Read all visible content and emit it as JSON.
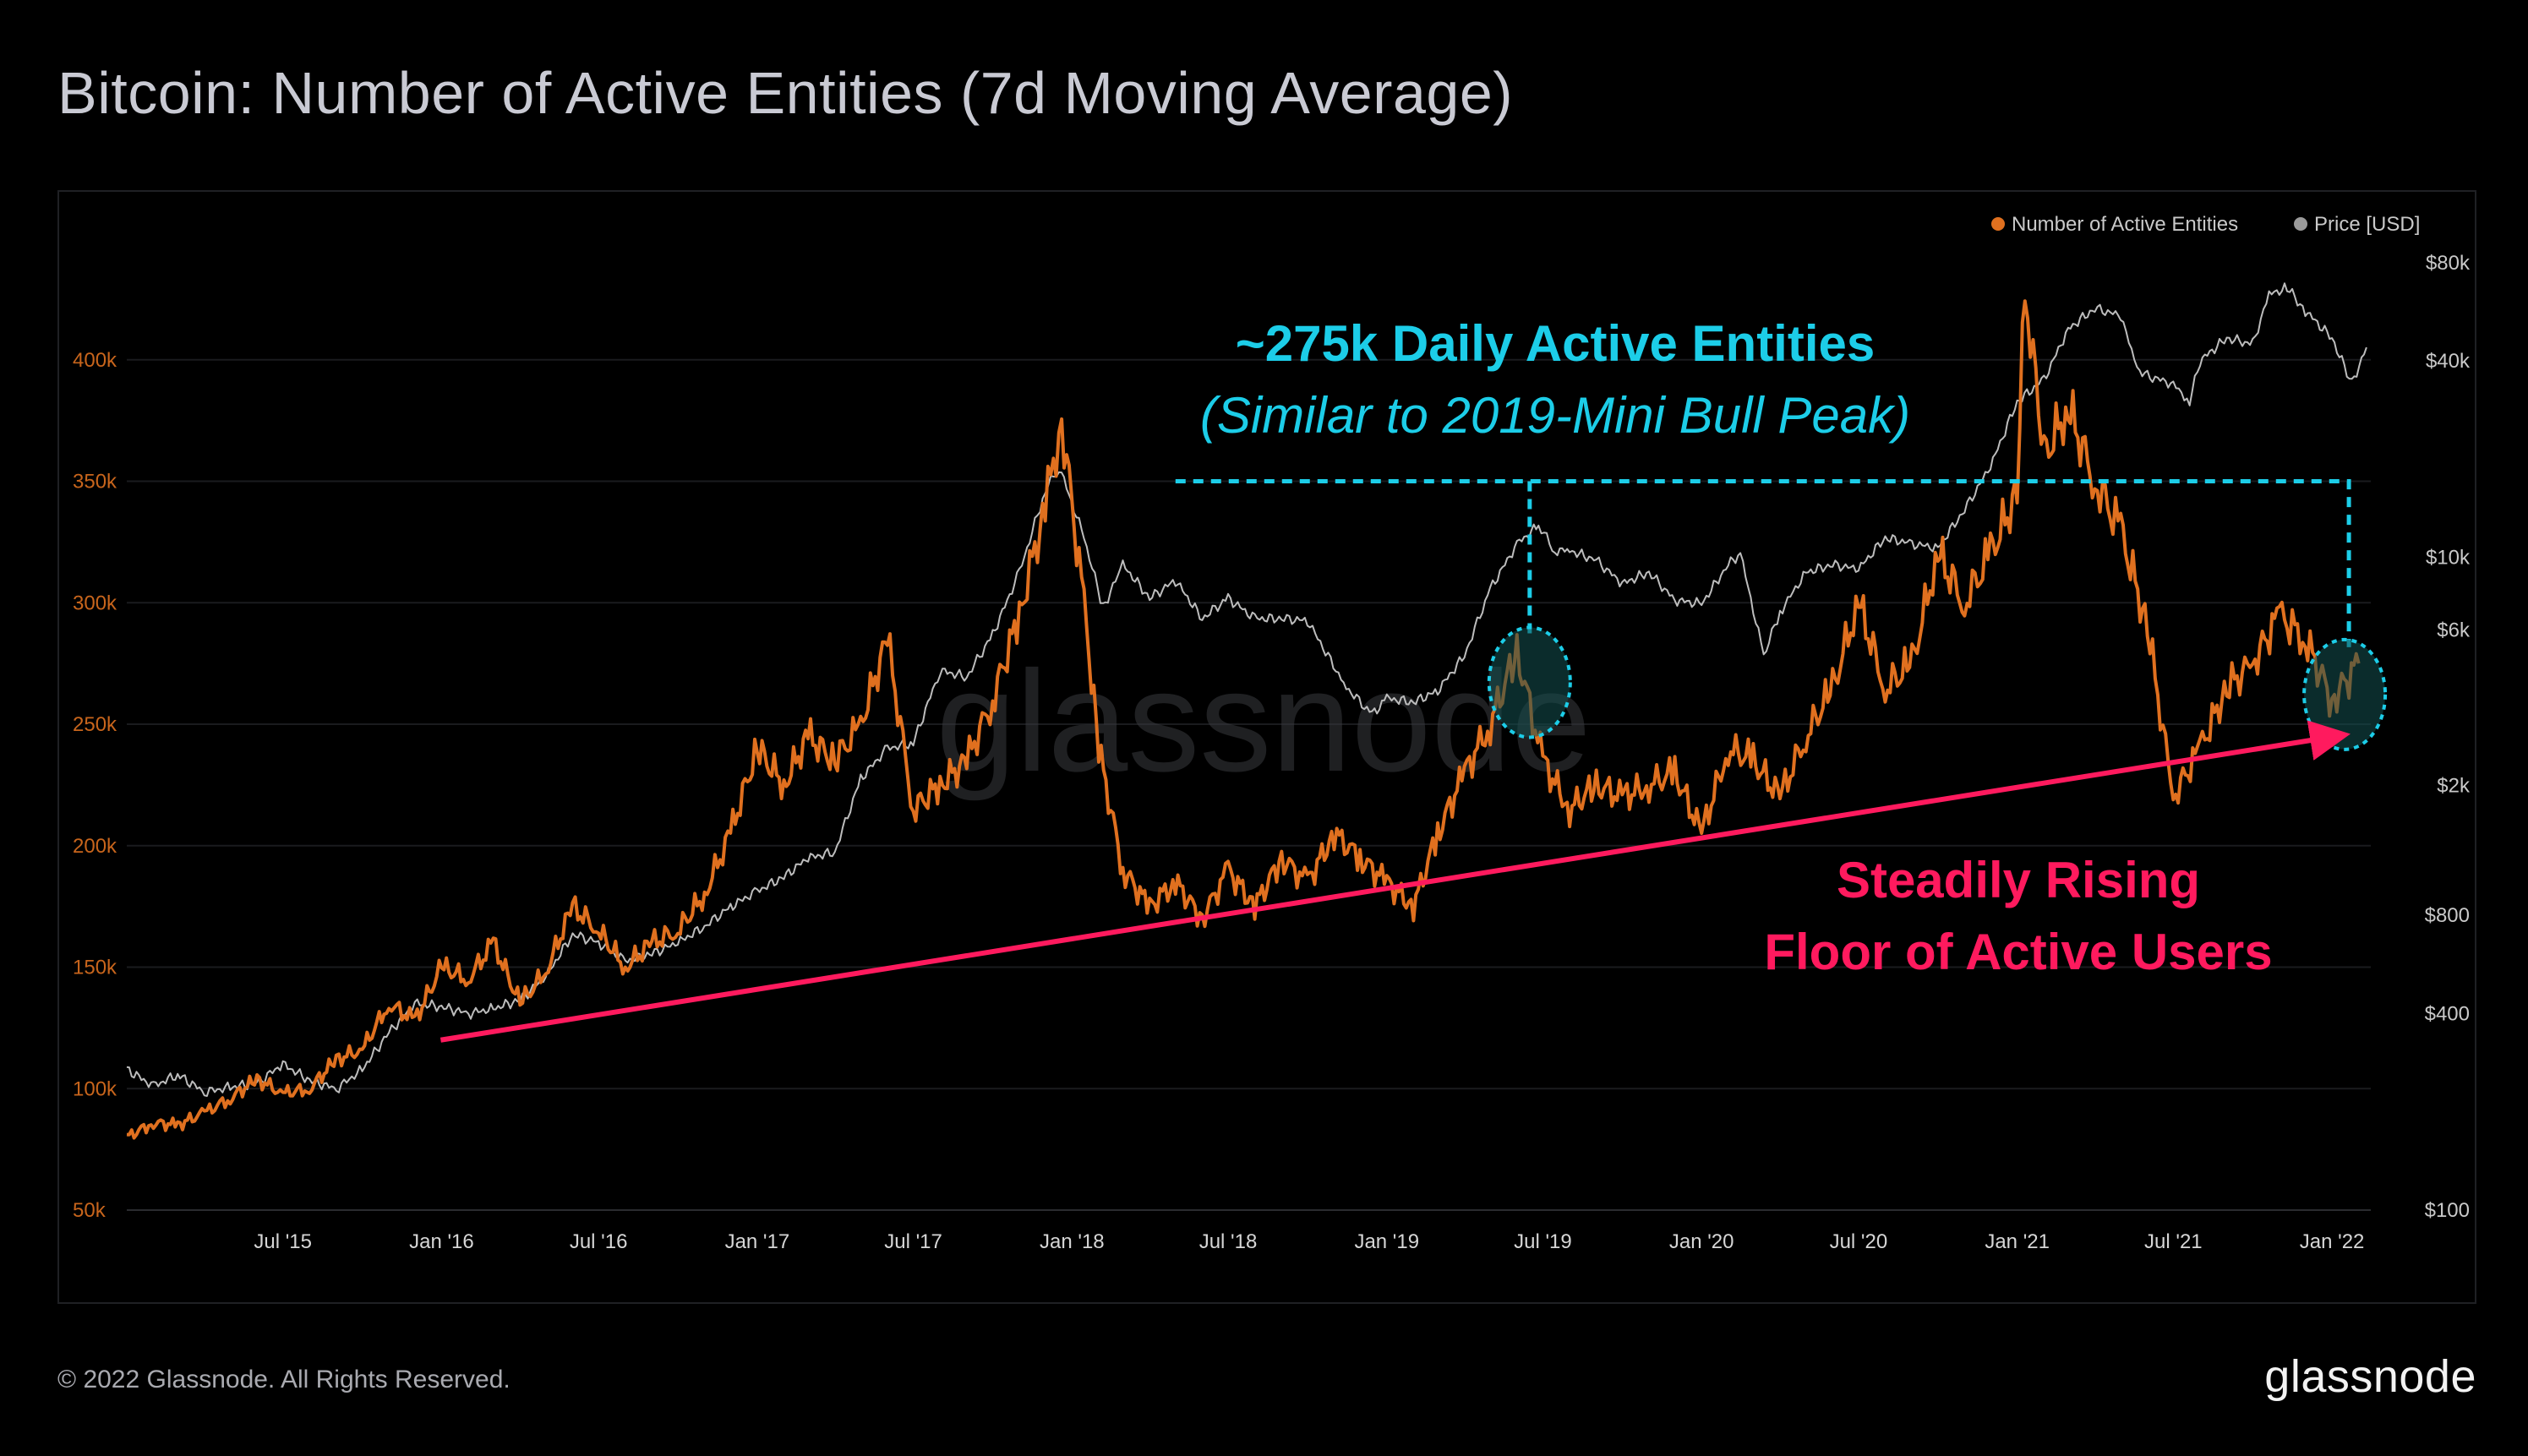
{
  "title": "Bitcoin: Number of Active Entities (7d Moving Average)",
  "footer": {
    "copyright": "© 2022 Glassnode. All Rights Reserved.",
    "brand": "glassnode"
  },
  "watermark": "glassnode",
  "chart_data": {
    "type": "line",
    "title": "Bitcoin: Number of Active Entities (7d Moving Average)",
    "x_ticks": [
      "Jul '15",
      "Jan '16",
      "Jul '16",
      "Jan '17",
      "Jul '17",
      "Jan '18",
      "Jul '18",
      "Jan '19",
      "Jul '19",
      "Jan '20",
      "Jul '20",
      "Jan '21",
      "Jul '21",
      "Jan '22"
    ],
    "x_range": [
      "2015-01-01",
      "2022-02-15"
    ],
    "y_left": {
      "range": [
        50000,
        450000
      ],
      "ticks": [
        50000,
        100000,
        150000,
        200000,
        250000,
        300000,
        350000,
        400000
      ],
      "tick_labels": [
        "50k",
        "100k",
        "150k",
        "200k",
        "250k",
        "300k",
        "350k",
        "400k"
      ]
    },
    "y_right": {
      "scale": "log",
      "range": [
        100,
        95000
      ],
      "ticks": [
        100,
        400,
        800,
        2000,
        6000,
        10000,
        40000,
        80000
      ],
      "tick_labels": [
        "$100",
        "$400",
        "$800",
        "$2k",
        "$6k",
        "$10k",
        "$40k",
        "$80k"
      ]
    },
    "legend": {
      "placement": "top-right"
    },
    "colors": {
      "entities": "#e0701f",
      "price": "#bdbdbd",
      "annotation_cyan": "#1ccde8",
      "annotation_pink": "#ff1a5e"
    },
    "series": [
      {
        "name": "Number of Active Entities",
        "axis": "left",
        "points": [
          [
            "2015-01-01",
            80000
          ],
          [
            "2015-02-01",
            86000
          ],
          [
            "2015-03-01",
            85000
          ],
          [
            "2015-04-01",
            90000
          ],
          [
            "2015-05-01",
            96000
          ],
          [
            "2015-06-01",
            104000
          ],
          [
            "2015-07-01",
            98000
          ],
          [
            "2015-08-01",
            100000
          ],
          [
            "2015-09-01",
            112000
          ],
          [
            "2015-10-01",
            116000
          ],
          [
            "2015-11-01",
            135000
          ],
          [
            "2015-12-01",
            128000
          ],
          [
            "2016-01-01",
            150000
          ],
          [
            "2016-02-01",
            145000
          ],
          [
            "2016-03-01",
            160000
          ],
          [
            "2016-04-01",
            135000
          ],
          [
            "2016-05-01",
            148000
          ],
          [
            "2016-06-01",
            175000
          ],
          [
            "2016-07-01",
            165000
          ],
          [
            "2016-08-01",
            150000
          ],
          [
            "2016-09-01",
            160000
          ],
          [
            "2016-10-01",
            165000
          ],
          [
            "2016-11-01",
            180000
          ],
          [
            "2016-12-01",
            205000
          ],
          [
            "2017-01-01",
            240000
          ],
          [
            "2017-02-01",
            225000
          ],
          [
            "2017-03-01",
            245000
          ],
          [
            "2017-04-01",
            235000
          ],
          [
            "2017-05-01",
            250000
          ],
          [
            "2017-06-01",
            285000
          ],
          [
            "2017-07-01",
            215000
          ],
          [
            "2017-08-01",
            225000
          ],
          [
            "2017-09-01",
            235000
          ],
          [
            "2017-10-01",
            260000
          ],
          [
            "2017-11-01",
            295000
          ],
          [
            "2017-12-01",
            340000
          ],
          [
            "2017-12-20",
            375000
          ],
          [
            "2018-01-15",
            300000
          ],
          [
            "2018-02-01",
            240000
          ],
          [
            "2018-03-01",
            190000
          ],
          [
            "2018-04-01",
            175000
          ],
          [
            "2018-05-01",
            185000
          ],
          [
            "2018-06-01",
            170000
          ],
          [
            "2018-07-01",
            190000
          ],
          [
            "2018-08-01",
            175000
          ],
          [
            "2018-09-01",
            195000
          ],
          [
            "2018-10-01",
            185000
          ],
          [
            "2018-11-01",
            205000
          ],
          [
            "2018-12-01",
            195000
          ],
          [
            "2019-01-01",
            185000
          ],
          [
            "2019-02-01",
            175000
          ],
          [
            "2019-03-01",
            205000
          ],
          [
            "2019-04-01",
            230000
          ],
          [
            "2019-05-01",
            250000
          ],
          [
            "2019-06-01",
            280000
          ],
          [
            "2019-07-01",
            235000
          ],
          [
            "2019-08-01",
            215000
          ],
          [
            "2019-09-01",
            225000
          ],
          [
            "2019-10-01",
            220000
          ],
          [
            "2019-11-01",
            225000
          ],
          [
            "2019-12-01",
            230000
          ],
          [
            "2020-01-01",
            205000
          ],
          [
            "2020-02-01",
            240000
          ],
          [
            "2020-03-01",
            235000
          ],
          [
            "2020-04-01",
            220000
          ],
          [
            "2020-05-01",
            245000
          ],
          [
            "2020-06-01",
            265000
          ],
          [
            "2020-07-01",
            300000
          ],
          [
            "2020-08-01",
            265000
          ],
          [
            "2020-09-01",
            275000
          ],
          [
            "2020-10-01",
            320000
          ],
          [
            "2020-11-01",
            300000
          ],
          [
            "2020-12-01",
            320000
          ],
          [
            "2021-01-01",
            345000
          ],
          [
            "2021-01-10",
            430000
          ],
          [
            "2021-02-01",
            360000
          ],
          [
            "2021-03-01",
            380000
          ],
          [
            "2021-04-01",
            350000
          ],
          [
            "2021-05-01",
            330000
          ],
          [
            "2021-06-01",
            290000
          ],
          [
            "2021-07-01",
            220000
          ],
          [
            "2021-08-01",
            240000
          ],
          [
            "2021-09-01",
            265000
          ],
          [
            "2021-10-01",
            275000
          ],
          [
            "2021-11-01",
            295000
          ],
          [
            "2021-12-01",
            285000
          ],
          [
            "2022-01-01",
            260000
          ],
          [
            "2022-02-01",
            275000
          ]
        ]
      },
      {
        "name": "Price [USD]",
        "axis": "right",
        "points": [
          [
            "2015-01-01",
            270
          ],
          [
            "2015-02-01",
            240
          ],
          [
            "2015-03-01",
            260
          ],
          [
            "2015-04-01",
            230
          ],
          [
            "2015-05-01",
            238
          ],
          [
            "2015-06-01",
            245
          ],
          [
            "2015-07-01",
            280
          ],
          [
            "2015-08-01",
            250
          ],
          [
            "2015-09-01",
            235
          ],
          [
            "2015-10-01",
            270
          ],
          [
            "2015-11-01",
            350
          ],
          [
            "2015-12-01",
            430
          ],
          [
            "2016-01-01",
            420
          ],
          [
            "2016-02-01",
            400
          ],
          [
            "2016-03-01",
            415
          ],
          [
            "2016-04-01",
            440
          ],
          [
            "2016-05-01",
            520
          ],
          [
            "2016-06-01",
            700
          ],
          [
            "2016-07-01",
            660
          ],
          [
            "2016-08-01",
            580
          ],
          [
            "2016-09-01",
            610
          ],
          [
            "2016-10-01",
            660
          ],
          [
            "2016-11-01",
            740
          ],
          [
            "2016-12-01",
            850
          ],
          [
            "2017-01-01",
            950
          ],
          [
            "2017-02-01",
            1050
          ],
          [
            "2017-03-01",
            1200
          ],
          [
            "2017-04-01",
            1250
          ],
          [
            "2017-05-01",
            2100
          ],
          [
            "2017-06-01",
            2600
          ],
          [
            "2017-07-01",
            2700
          ],
          [
            "2017-08-01",
            4500
          ],
          [
            "2017-09-01",
            4300
          ],
          [
            "2017-10-01",
            5800
          ],
          [
            "2017-11-01",
            9000
          ],
          [
            "2017-12-01",
            16000
          ],
          [
            "2017-12-17",
            19000
          ],
          [
            "2018-01-15",
            11500
          ],
          [
            "2018-02-06",
            7000
          ],
          [
            "2018-03-01",
            9500
          ],
          [
            "2018-04-01",
            7500
          ],
          [
            "2018-05-01",
            8500
          ],
          [
            "2018-06-01",
            6500
          ],
          [
            "2018-07-01",
            7500
          ],
          [
            "2018-08-01",
            6500
          ],
          [
            "2018-09-01",
            6500
          ],
          [
            "2018-10-01",
            6400
          ],
          [
            "2018-11-15",
            4000
          ],
          [
            "2018-12-15",
            3300
          ],
          [
            "2019-01-01",
            3700
          ],
          [
            "2019-02-01",
            3600
          ],
          [
            "2019-03-01",
            3900
          ],
          [
            "2019-04-01",
            5000
          ],
          [
            "2019-05-01",
            8000
          ],
          [
            "2019-06-01",
            11000
          ],
          [
            "2019-06-26",
            12500
          ],
          [
            "2019-07-15",
            10500
          ],
          [
            "2019-08-01",
            10500
          ],
          [
            "2019-09-01",
            9800
          ],
          [
            "2019-10-01",
            8300
          ],
          [
            "2019-11-01",
            9000
          ],
          [
            "2019-12-01",
            7400
          ],
          [
            "2020-01-01",
            7200
          ],
          [
            "2020-02-01",
            9500
          ],
          [
            "2020-02-15",
            10300
          ],
          [
            "2020-03-13",
            5000
          ],
          [
            "2020-04-01",
            6800
          ],
          [
            "2020-05-01",
            9000
          ],
          [
            "2020-06-01",
            9500
          ],
          [
            "2020-07-01",
            9200
          ],
          [
            "2020-08-01",
            11500
          ],
          [
            "2020-09-01",
            11000
          ],
          [
            "2020-10-01",
            10700
          ],
          [
            "2020-11-01",
            14000
          ],
          [
            "2020-12-01",
            19000
          ],
          [
            "2021-01-01",
            30000
          ],
          [
            "2021-02-01",
            35000
          ],
          [
            "2021-03-01",
            50000
          ],
          [
            "2021-04-01",
            58000
          ],
          [
            "2021-05-01",
            55000
          ],
          [
            "2021-05-20",
            38000
          ],
          [
            "2021-06-01",
            36000
          ],
          [
            "2021-07-01",
            34000
          ],
          [
            "2021-07-20",
            30000
          ],
          [
            "2021-08-01",
            40000
          ],
          [
            "2021-09-01",
            47000
          ],
          [
            "2021-10-01",
            45000
          ],
          [
            "2021-10-20",
            64000
          ],
          [
            "2021-11-10",
            67000
          ],
          [
            "2021-12-01",
            57000
          ],
          [
            "2022-01-01",
            47000
          ],
          [
            "2022-01-24",
            34000
          ],
          [
            "2022-02-10",
            44000
          ]
        ]
      }
    ],
    "annotations": {
      "headline": "~275k Daily Active Entities",
      "subline": "(Similar to 2019-Mini Bull Peak)",
      "trend_label_line1": "Steadily Rising",
      "trend_label_line2": "Floor of Active Users",
      "reference_level": 350000,
      "trend_from": [
        "2015-12-31",
        120000
      ],
      "trend_to": [
        "2022-01-05",
        245000
      ],
      "highlight_2019": [
        "2019-06-01",
        270000
      ],
      "highlight_2022": [
        "2022-01-01",
        265000
      ]
    }
  }
}
